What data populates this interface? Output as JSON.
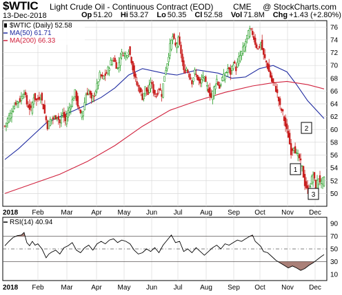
{
  "header": {
    "symbol": "$WTIC",
    "name": "Light Crude Oil - Continuous Contract (EOD)",
    "exchange": "CME",
    "copyright": "@ StockCharts.com",
    "date": "13-Dec-2018",
    "ohlc": [
      {
        "label": "Op",
        "value": "51.20"
      },
      {
        "label": "Hi",
        "value": "53.27"
      },
      {
        "label": "Lo",
        "value": "50.35"
      },
      {
        "label": "Cl",
        "value": "52.58"
      },
      {
        "label": "Vol",
        "value": "71.8M"
      },
      {
        "label": "Chg",
        "value": "+1.43 (+2.80%)"
      }
    ]
  },
  "legend": {
    "price": "$WTIC (Daily) 52.58",
    "ma50": "MA(50) 61.71",
    "ma200": "MA(200) 66.33",
    "rsi": "RSI(14) 40.94"
  },
  "annotations": [
    "1",
    "2",
    "3"
  ],
  "colors": {
    "up": "#1f9a1f",
    "down": "#c81e1e",
    "ma50": "#1e2aa0",
    "ma200": "#d0203c",
    "rsi_line": "#000000",
    "rsi_fill": "#9b6a60",
    "grid": "#d9d9d9"
  },
  "chart_data": [
    {
      "type": "candlestick",
      "title": "Light Crude Oil - Continuous Contract (EOD)",
      "x_labels": [
        "2018",
        "Feb",
        "Mar",
        "Apr",
        "May",
        "Jun",
        "Jul",
        "Aug",
        "Sep",
        "Oct",
        "Nov",
        "Dec"
      ],
      "ylim": [
        48,
        77
      ],
      "y_ticks": [
        50,
        52,
        54,
        56,
        58,
        60,
        62,
        64,
        66,
        68,
        70,
        72,
        74,
        76
      ],
      "grid": true,
      "price_path": [
        [
          0,
          60.5
        ],
        [
          2,
          61.6
        ],
        [
          5,
          62.8
        ],
        [
          8,
          64.2
        ],
        [
          11,
          64.6
        ],
        [
          14,
          66.0
        ],
        [
          16,
          64.0
        ],
        [
          19,
          63.0
        ],
        [
          21,
          65.2
        ],
        [
          23,
          64.5
        ],
        [
          26,
          65.3
        ],
        [
          28,
          63.5
        ],
        [
          31,
          60.5
        ],
        [
          33,
          61.5
        ],
        [
          36,
          61.8
        ],
        [
          38,
          62.2
        ],
        [
          40,
          61.0
        ],
        [
          42,
          62.5
        ],
        [
          44,
          61.3
        ],
        [
          46,
          62.8
        ],
        [
          49,
          64.5
        ],
        [
          51,
          65.8
        ],
        [
          53,
          63.8
        ],
        [
          55,
          62.2
        ],
        [
          57,
          63.0
        ],
        [
          59,
          65.5
        ],
        [
          61,
          66.0
        ],
        [
          63,
          64.5
        ],
        [
          65,
          65.5
        ],
        [
          67,
          66.8
        ],
        [
          69,
          68.5
        ],
        [
          71,
          68.0
        ],
        [
          74,
          68.8
        ],
        [
          77,
          70.5
        ],
        [
          79,
          71.0
        ],
        [
          82,
          69.5
        ],
        [
          84,
          71.5
        ],
        [
          86,
          72.0
        ],
        [
          88,
          71.5
        ],
        [
          90,
          72.5
        ],
        [
          92,
          70.8
        ],
        [
          94,
          68.5
        ],
        [
          96,
          67.0
        ],
        [
          98,
          66.2
        ],
        [
          100,
          65.0
        ],
        [
          102,
          66.5
        ],
        [
          104,
          65.5
        ],
        [
          106,
          67.5
        ],
        [
          108,
          66.0
        ],
        [
          110,
          65.2
        ],
        [
          112,
          66.5
        ],
        [
          114,
          65.5
        ],
        [
          116,
          68.5
        ],
        [
          118,
          70.5
        ],
        [
          120,
          73.0
        ],
        [
          122,
          74.5
        ],
        [
          124,
          73.0
        ],
        [
          126,
          74.0
        ],
        [
          128,
          72.0
        ],
        [
          130,
          69.0
        ],
        [
          132,
          69.5
        ],
        [
          134,
          68.5
        ],
        [
          136,
          67.5
        ],
        [
          138,
          69.0
        ],
        [
          140,
          68.0
        ],
        [
          142,
          67.0
        ],
        [
          144,
          68.5
        ],
        [
          146,
          67.0
        ],
        [
          148,
          66.2
        ],
        [
          150,
          65.0
        ],
        [
          152,
          66.5
        ],
        [
          154,
          67.8
        ],
        [
          156,
          66.5
        ],
        [
          158,
          68.0
        ],
        [
          160,
          68.5
        ],
        [
          162,
          69.5
        ],
        [
          164,
          68.8
        ],
        [
          166,
          70.5
        ],
        [
          168,
          69.5
        ],
        [
          170,
          71.0
        ],
        [
          172,
          72.0
        ],
        [
          174,
          73.0
        ],
        [
          176,
          74.5
        ],
        [
          178,
          75.5
        ],
        [
          180,
          75.0
        ],
        [
          182,
          73.5
        ],
        [
          184,
          72.5
        ],
        [
          186,
          73.5
        ],
        [
          188,
          71.5
        ],
        [
          190,
          70.5
        ],
        [
          192,
          69.0
        ],
        [
          194,
          67.5
        ],
        [
          196,
          67.0
        ],
        [
          198,
          65.5
        ],
        [
          200,
          63.5
        ],
        [
          202,
          62.5
        ],
        [
          204,
          60.5
        ],
        [
          206,
          59.0
        ],
        [
          208,
          56.5
        ],
        [
          210,
          57.5
        ],
        [
          212,
          56.0
        ],
        [
          214,
          55.5
        ],
        [
          216,
          54.0
        ],
        [
          218,
          51.5
        ],
        [
          220,
          50.5
        ],
        [
          222,
          51.5
        ],
        [
          224,
          53.0
        ],
        [
          226,
          51.0
        ],
        [
          228,
          52.5
        ],
        [
          230,
          51.5
        ],
        [
          232,
          52.58
        ]
      ],
      "series": [
        {
          "name": "MA(50)",
          "points": [
            [
              0,
              55.3
            ],
            [
              10,
              57.0
            ],
            [
              20,
              59.0
            ],
            [
              30,
              61.0
            ],
            [
              40,
              62.0
            ],
            [
              55,
              63.4
            ],
            [
              70,
              65.0
            ],
            [
              80,
              66.5
            ],
            [
              90,
              68.5
            ],
            [
              100,
              69.5
            ],
            [
              115,
              68.8
            ],
            [
              125,
              68.5
            ],
            [
              140,
              69.3
            ],
            [
              155,
              68.8
            ],
            [
              165,
              68.0
            ],
            [
              175,
              68.2
            ],
            [
              185,
              69.5
            ],
            [
              195,
              70.0
            ],
            [
              205,
              69.0
            ],
            [
              212,
              67.0
            ],
            [
              220,
              64.5
            ],
            [
              232,
              61.71
            ]
          ]
        },
        {
          "name": "MA(200)",
          "points": [
            [
              0,
              50.0
            ],
            [
              20,
              51.5
            ],
            [
              40,
              53.0
            ],
            [
              60,
              55.0
            ],
            [
              80,
              57.5
            ],
            [
              100,
              60.5
            ],
            [
              120,
              63.0
            ],
            [
              140,
              64.5
            ],
            [
              160,
              65.8
            ],
            [
              180,
              66.8
            ],
            [
              195,
              67.3
            ],
            [
              205,
              67.5
            ],
            [
              220,
              67.0
            ],
            [
              232,
              66.33
            ]
          ]
        }
      ]
    },
    {
      "type": "line",
      "title": "RSI(14) 40.94",
      "x_labels": [
        "2018",
        "Feb",
        "Mar",
        "Apr",
        "May",
        "Jun",
        "Jul",
        "Aug",
        "Sep",
        "Oct",
        "Nov",
        "Dec"
      ],
      "ylim": [
        0,
        100
      ],
      "y_ticks": [
        10,
        30,
        50,
        70,
        90
      ],
      "reference_lines": [
        30,
        50,
        70
      ],
      "points": [
        [
          0,
          55
        ],
        [
          3,
          62
        ],
        [
          6,
          68
        ],
        [
          9,
          71
        ],
        [
          12,
          72
        ],
        [
          14,
          76
        ],
        [
          16,
          60
        ],
        [
          18,
          55
        ],
        [
          20,
          62
        ],
        [
          22,
          56
        ],
        [
          24,
          58
        ],
        [
          27,
          50
        ],
        [
          30,
          36
        ],
        [
          32,
          42
        ],
        [
          34,
          45
        ],
        [
          37,
          48
        ],
        [
          40,
          42
        ],
        [
          43,
          52
        ],
        [
          46,
          55
        ],
        [
          49,
          60
        ],
        [
          52,
          48
        ],
        [
          55,
          44
        ],
        [
          58,
          52
        ],
        [
          61,
          56
        ],
        [
          64,
          48
        ],
        [
          67,
          58
        ],
        [
          70,
          62
        ],
        [
          73,
          58
        ],
        [
          76,
          64
        ],
        [
          79,
          66
        ],
        [
          82,
          60
        ],
        [
          85,
          64
        ],
        [
          88,
          62
        ],
        [
          91,
          58
        ],
        [
          94,
          48
        ],
        [
          97,
          42
        ],
        [
          100,
          44
        ],
        [
          103,
          50
        ],
        [
          106,
          46
        ],
        [
          109,
          52
        ],
        [
          112,
          44
        ],
        [
          115,
          56
        ],
        [
          118,
          64
        ],
        [
          121,
          72
        ],
        [
          124,
          60
        ],
        [
          127,
          62
        ],
        [
          130,
          46
        ],
        [
          133,
          50
        ],
        [
          136,
          44
        ],
        [
          139,
          52
        ],
        [
          142,
          46
        ],
        [
          145,
          40
        ],
        [
          148,
          46
        ],
        [
          151,
          52
        ],
        [
          154,
          56
        ],
        [
          157,
          50
        ],
        [
          160,
          58
        ],
        [
          163,
          56
        ],
        [
          166,
          60
        ],
        [
          169,
          64
        ],
        [
          172,
          62
        ],
        [
          175,
          66
        ],
        [
          178,
          70
        ],
        [
          180,
          72
        ],
        [
          182,
          62
        ],
        [
          184,
          58
        ],
        [
          186,
          54
        ],
        [
          188,
          46
        ],
        [
          191,
          44
        ],
        [
          194,
          38
        ],
        [
          197,
          32
        ],
        [
          200,
          28
        ],
        [
          203,
          24
        ],
        [
          206,
          20
        ],
        [
          209,
          23
        ],
        [
          212,
          20
        ],
        [
          215,
          16
        ],
        [
          218,
          19
        ],
        [
          221,
          24
        ],
        [
          224,
          28
        ],
        [
          227,
          33
        ],
        [
          230,
          38
        ],
        [
          232,
          40.94
        ]
      ]
    }
  ]
}
